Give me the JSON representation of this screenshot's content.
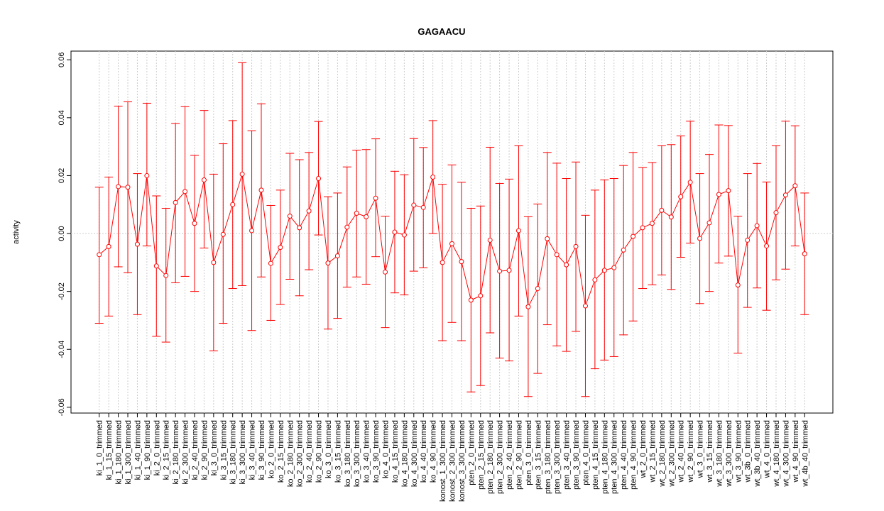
{
  "chart_data": {
    "type": "errorbar",
    "title": "GAGAACU",
    "ylabel": "activity",
    "categories": [
      "ki_1_0_trimmed",
      "ki_1_15_trimmed",
      "ki_1_180_trimmed",
      "ki_1_300_trimmed",
      "ki_1_40_trimmed",
      "ki_1_90_trimmed",
      "ki_2_0_trimmed",
      "ki_2_15_trimmed",
      "ki_2_180_trimmed",
      "ki_2_300_trimmed",
      "ki_2_40_trimmed",
      "ki_2_90_trimmed",
      "ki_3_0_trimmed",
      "ki_3_15_trimmed",
      "ki_3_180_trimmed",
      "ki_3_300_trimmed",
      "ki_3_40_trimmed",
      "ki_3_90_trimmed",
      "ko_2_0_trimmed",
      "ko_2_15_trimmed",
      "ko_2_180_trimmed",
      "ko_2_300_trimmed",
      "ko_2_40_trimmed",
      "ko_2_90_trimmed",
      "ko_3_0_trimmed",
      "ko_3_15_trimmed",
      "ko_3_180_trimmed",
      "ko_3_300_trimmed",
      "ko_3_40_trimmed",
      "ko_3_90_trimmed",
      "ko_4_0_trimmed",
      "ko_4_15_trimmed",
      "ko_4_180_trimmed",
      "ko_4_300_trimmed",
      "ko_4_40_trimmed",
      "ko_4_90_trimmed",
      "konost_1_300_trimmed",
      "konost_2_300_trimmed",
      "konost_3_300_trimmed",
      "pten_2_0_trimmed",
      "pten_2_15_trimmed",
      "pten_2_180_trimmed",
      "pten_2_300_trimmed",
      "pten_2_40_trimmed",
      "pten_2_90_trimmed",
      "pten_3_0_trimmed",
      "pten_3_15_trimmed",
      "pten_3_180_trimmed",
      "pten_3_300_trimmed",
      "pten_3_40_trimmed",
      "pten_3_90_trimmed",
      "pten_4_0_trimmed",
      "pten_4_15_trimmed",
      "pten_4_180_trimmed",
      "pten_4_300_trimmed",
      "pten_4_40_trimmed",
      "pten_4_90_trimmed",
      "wt_2_0_trimmed",
      "wt_2_15_trimmed",
      "wt_2_180_trimmed",
      "wt_2_300_trimmed",
      "wt_2_40_trimmed",
      "wt_2_90_trimmed",
      "wt_3_0_trimmed",
      "wt_3_15_trimmed",
      "wt_3_180_trimmed",
      "wt_3_300_trimmed",
      "wt_3_90_trimmed",
      "wt_3b_0_trimmed",
      "wt_3b_40_trimmed",
      "wt_4_0_trimmed",
      "wt_4_180_trimmed",
      "wt_4_300_trimmed",
      "wt_4_90_trimmed",
      "wt_4b_40_trimmed"
    ],
    "values": [
      -0.0073,
      -0.0045,
      0.0162,
      0.016,
      -0.0037,
      0.02,
      -0.0112,
      -0.0145,
      0.0107,
      0.0145,
      0.0035,
      0.0185,
      -0.01,
      -0.0003,
      0.01,
      0.0205,
      0.001,
      0.015,
      -0.0103,
      -0.0048,
      0.006,
      0.002,
      0.0078,
      0.019,
      -0.0102,
      -0.0077,
      0.0022,
      0.007,
      0.0058,
      0.0122,
      -0.0133,
      0.0005,
      -0.0005,
      0.0098,
      0.009,
      0.0195,
      -0.01,
      -0.0035,
      -0.0097,
      -0.023,
      -0.0215,
      -0.0023,
      -0.013,
      -0.0127,
      0.001,
      -0.0253,
      -0.019,
      -0.0018,
      -0.0073,
      -0.0108,
      -0.0045,
      -0.025,
      -0.016,
      -0.0127,
      -0.0118,
      -0.0057,
      -0.001,
      0.002,
      0.0035,
      0.008,
      0.0057,
      0.0127,
      0.0177,
      -0.0017,
      0.0037,
      0.0135,
      0.0148,
      -0.0178,
      -0.0023,
      0.0027,
      -0.0043,
      0.0072,
      0.0133,
      0.0165,
      -0.007
    ],
    "upper": [
      0.016,
      0.0195,
      0.044,
      0.0455,
      0.0207,
      0.045,
      0.013,
      0.0087,
      0.038,
      0.0438,
      0.027,
      0.0425,
      0.0205,
      0.031,
      0.039,
      0.059,
      0.0355,
      0.0448,
      0.0097,
      0.015,
      0.0277,
      0.0255,
      0.028,
      0.0387,
      0.0127,
      0.014,
      0.023,
      0.0288,
      0.029,
      0.0327,
      0.006,
      0.0215,
      0.0203,
      0.0328,
      0.0297,
      0.039,
      0.017,
      0.0237,
      0.0177,
      0.0087,
      0.0095,
      0.0298,
      0.0173,
      0.0188,
      0.0303,
      0.0058,
      0.0102,
      0.028,
      0.0243,
      0.019,
      0.0247,
      0.0063,
      0.015,
      0.0185,
      0.019,
      0.0235,
      0.028,
      0.0228,
      0.0245,
      0.0303,
      0.0307,
      0.0337,
      0.0388,
      0.0207,
      0.0273,
      0.0375,
      0.0373,
      0.006,
      0.0207,
      0.0242,
      0.0178,
      0.0303,
      0.0388,
      0.0372,
      0.014
    ],
    "lower": [
      -0.031,
      -0.0285,
      -0.0115,
      -0.0135,
      -0.028,
      -0.0043,
      -0.0355,
      -0.0375,
      -0.017,
      -0.0148,
      -0.02,
      -0.005,
      -0.0405,
      -0.031,
      -0.019,
      -0.018,
      -0.0335,
      -0.015,
      -0.03,
      -0.0245,
      -0.0158,
      -0.0215,
      -0.0125,
      -0.0005,
      -0.033,
      -0.0293,
      -0.0185,
      -0.015,
      -0.0175,
      -0.008,
      -0.0325,
      -0.0205,
      -0.0212,
      -0.013,
      -0.0118,
      0.0,
      -0.037,
      -0.0307,
      -0.037,
      -0.0547,
      -0.0525,
      -0.0343,
      -0.043,
      -0.044,
      -0.0285,
      -0.0563,
      -0.0483,
      -0.0315,
      -0.0388,
      -0.0407,
      -0.0338,
      -0.0563,
      -0.0467,
      -0.0437,
      -0.0425,
      -0.035,
      -0.0302,
      -0.019,
      -0.0177,
      -0.0143,
      -0.0193,
      -0.0082,
      -0.0033,
      -0.0242,
      -0.02,
      -0.0102,
      -0.0078,
      -0.0413,
      -0.0255,
      -0.0188,
      -0.0265,
      -0.016,
      -0.0123,
      -0.0043,
      -0.028
    ],
    "color": "#ff0000",
    "ylim": [
      -0.062,
      0.063
    ],
    "yticks": [
      {
        "value": -0.06,
        "label": "-0.06"
      },
      {
        "value": -0.04,
        "label": "-0.04"
      },
      {
        "value": -0.02,
        "label": "-0.02"
      },
      {
        "value": 0,
        "label": "0.00"
      },
      {
        "value": 0.02,
        "label": "0.02"
      },
      {
        "value": 0.04,
        "label": "0.04"
      },
      {
        "value": 0.06,
        "label": "0.06"
      }
    ],
    "reference_line": 0,
    "grid": "vertical"
  }
}
